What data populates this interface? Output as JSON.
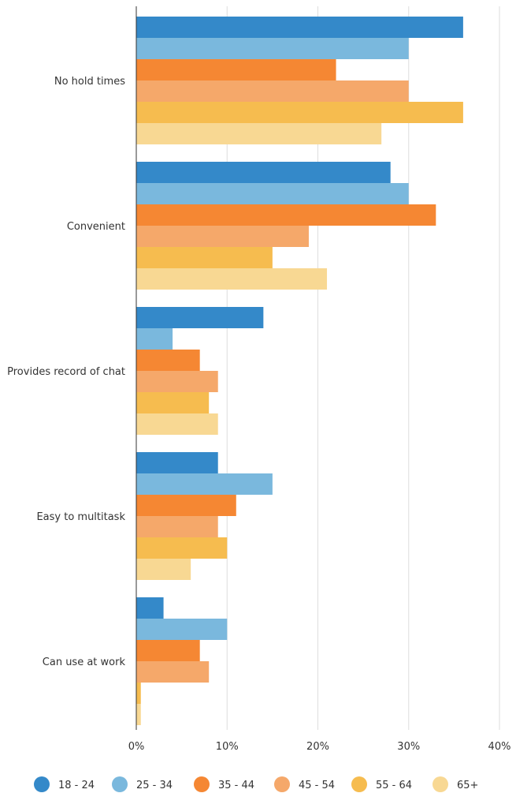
{
  "chart_data": {
    "type": "bar",
    "orientation": "horizontal",
    "categories": [
      "No hold times",
      "Convenient",
      "Provides record of chat",
      "Easy to multitask",
      "Can use at work"
    ],
    "series": [
      {
        "name": "18 - 24",
        "color": "#3489c9",
        "values": [
          36,
          28,
          14,
          9,
          3
        ]
      },
      {
        "name": "25 - 34",
        "color": "#7ab8dd",
        "values": [
          30,
          30,
          4,
          15,
          10
        ]
      },
      {
        "name": "35 - 44",
        "color": "#f58733",
        "values": [
          22,
          33,
          7,
          11,
          7
        ]
      },
      {
        "name": "45 - 54",
        "color": "#f5a86a",
        "values": [
          30,
          19,
          9,
          9,
          8
        ]
      },
      {
        "name": "55 - 64",
        "color": "#f6bc4f",
        "values": [
          36,
          15,
          8,
          10,
          0.5
        ]
      },
      {
        "name": "65+",
        "color": "#f8d893",
        "values": [
          27,
          21,
          9,
          6,
          0.5
        ]
      }
    ],
    "x_ticks": [
      "0%",
      "10%",
      "20%",
      "30%",
      "40%"
    ],
    "xlim": [
      0,
      40
    ],
    "grid": true,
    "legend_position": "bottom"
  }
}
